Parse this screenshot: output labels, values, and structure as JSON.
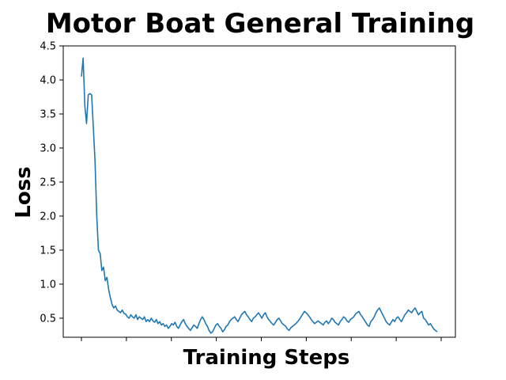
{
  "chart_data": {
    "type": "line",
    "title": "Motor Boat General Training",
    "xlabel": "Training Steps",
    "ylabel": "Loss",
    "ylim": [
      0.22,
      4.5
    ],
    "y_ticks": [
      0.5,
      1.0,
      1.5,
      2.0,
      2.5,
      3.0,
      3.5,
      4.0,
      4.5
    ],
    "y_tick_labels": [
      "0.5",
      "1.0",
      "1.5",
      "2.0",
      "2.5",
      "3.0",
      "3.5",
      "4.0",
      "4.5"
    ],
    "x_tick_labels_shown": false,
    "x_tick_count": 9,
    "grid": false,
    "legend": "none",
    "colors": {
      "line": "#1f77b4",
      "axes": "#000000"
    },
    "series": [
      {
        "values": [
          4.05,
          4.32,
          3.62,
          3.36,
          3.78,
          3.8,
          3.78,
          3.3,
          2.8,
          2.0,
          1.5,
          1.45,
          1.2,
          1.25,
          1.05,
          1.1,
          0.92,
          0.8,
          0.7,
          0.65,
          0.68,
          0.62,
          0.6,
          0.58,
          0.62,
          0.57,
          0.56,
          0.52,
          0.5,
          0.55,
          0.52,
          0.5,
          0.55,
          0.48,
          0.52,
          0.5,
          0.48,
          0.52,
          0.45,
          0.48,
          0.45,
          0.5,
          0.46,
          0.44,
          0.48,
          0.42,
          0.45,
          0.4,
          0.42,
          0.38,
          0.4,
          0.35,
          0.38,
          0.42,
          0.4,
          0.44,
          0.38,
          0.35,
          0.4,
          0.45,
          0.48,
          0.42,
          0.38,
          0.35,
          0.32,
          0.36,
          0.4,
          0.38,
          0.35,
          0.42,
          0.48,
          0.52,
          0.48,
          0.42,
          0.38,
          0.32,
          0.28,
          0.3,
          0.35,
          0.4,
          0.42,
          0.38,
          0.35,
          0.3,
          0.33,
          0.38,
          0.4,
          0.45,
          0.48,
          0.5,
          0.52,
          0.48,
          0.45,
          0.5,
          0.55,
          0.58,
          0.6,
          0.55,
          0.52,
          0.48,
          0.45,
          0.5,
          0.52,
          0.55,
          0.58,
          0.54,
          0.5,
          0.55,
          0.58,
          0.52,
          0.48,
          0.45,
          0.42,
          0.4,
          0.44,
          0.48,
          0.5,
          0.46,
          0.42,
          0.4,
          0.38,
          0.34,
          0.32,
          0.36,
          0.38,
          0.4,
          0.42,
          0.45,
          0.48,
          0.52,
          0.56,
          0.6,
          0.58,
          0.55,
          0.52,
          0.48,
          0.45,
          0.42,
          0.44,
          0.46,
          0.44,
          0.42,
          0.4,
          0.44,
          0.46,
          0.42,
          0.45,
          0.5,
          0.48,
          0.44,
          0.42,
          0.4,
          0.45,
          0.48,
          0.52,
          0.5,
          0.46,
          0.44,
          0.48,
          0.5,
          0.52,
          0.56,
          0.58,
          0.6,
          0.55,
          0.52,
          0.48,
          0.44,
          0.4,
          0.38,
          0.45,
          0.48,
          0.52,
          0.58,
          0.62,
          0.65,
          0.6,
          0.55,
          0.5,
          0.45,
          0.42,
          0.4,
          0.44,
          0.48,
          0.45,
          0.5,
          0.52,
          0.48,
          0.45,
          0.5,
          0.55,
          0.58,
          0.62,
          0.6,
          0.58,
          0.62,
          0.65,
          0.6,
          0.55,
          0.58,
          0.6,
          0.5,
          0.48,
          0.44,
          0.4,
          0.42,
          0.38,
          0.34,
          0.32,
          0.3
        ]
      }
    ]
  }
}
